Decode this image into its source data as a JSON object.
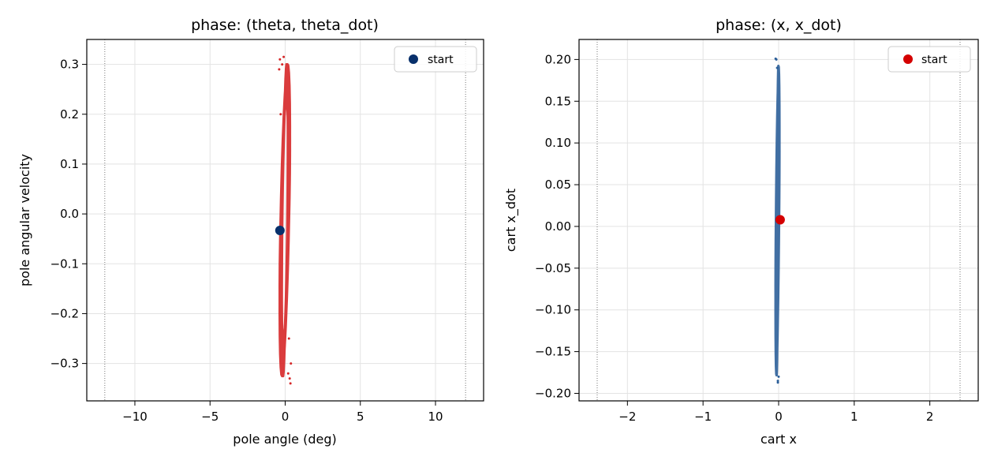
{
  "chart_data": [
    {
      "type": "scatter",
      "title": "phase: (theta, theta_dot)",
      "xlabel": "pole angle (deg)",
      "ylabel": "pole angular velocity",
      "xlim": [
        -13.2,
        13.2
      ],
      "ylim": [
        -0.375,
        0.35
      ],
      "xticks": [
        -10,
        -5,
        0,
        5,
        10
      ],
      "xtick_labels": [
        "−10",
        "−5",
        "0",
        "5",
        "10"
      ],
      "yticks": [
        -0.3,
        -0.2,
        -0.1,
        0.0,
        0.1,
        0.2,
        0.3
      ],
      "ytick_labels": [
        "−0.3",
        "−0.2",
        "−0.1",
        "0.0",
        "0.1",
        "0.2",
        "0.3"
      ],
      "vlines": [
        -12,
        12
      ],
      "grid": true,
      "legend": {
        "position": "top-right",
        "entries": [
          "start"
        ]
      },
      "series": [
        {
          "kind": "trajectory",
          "color": "#d62728",
          "x_range": [
            -0.45,
            0.4
          ],
          "y_range": [
            -0.34,
            0.315
          ],
          "points": [
            {
              "x": -0.35,
              "y": 0.31
            },
            {
              "x": 0.3,
              "y": -0.33
            },
            {
              "x": -0.2,
              "y": 0.3
            },
            {
              "x": 0.35,
              "y": -0.34
            },
            {
              "x": -0.4,
              "y": 0.29
            },
            {
              "x": 0.2,
              "y": -0.32
            },
            {
              "x": -0.1,
              "y": 0.315
            },
            {
              "x": 0.38,
              "y": -0.3
            },
            {
              "x": -0.3,
              "y": 0.2
            },
            {
              "x": 0.25,
              "y": -0.25
            }
          ]
        },
        {
          "name": "start",
          "kind": "marker",
          "color": "#08306b",
          "points": [
            {
              "x": -0.35,
              "y": -0.033
            }
          ]
        }
      ]
    },
    {
      "type": "scatter",
      "title": "phase: (x, x_dot)",
      "xlabel": "cart x",
      "ylabel": "cart x_dot",
      "xlim": [
        -2.64,
        2.64
      ],
      "ylim": [
        -0.209,
        0.224
      ],
      "xticks": [
        -2,
        -1,
        0,
        1,
        2
      ],
      "xtick_labels": [
        "−2",
        "−1",
        "0",
        "1",
        "2"
      ],
      "yticks": [
        -0.2,
        -0.15,
        -0.1,
        -0.05,
        0.0,
        0.05,
        0.1,
        0.15,
        0.2
      ],
      "ytick_labels": [
        "−0.20",
        "−0.15",
        "−0.10",
        "−0.05",
        "0.00",
        "0.05",
        "0.10",
        "0.15",
        "0.20"
      ],
      "vlines": [
        -2.4,
        2.4
      ],
      "grid": true,
      "legend": {
        "position": "top-right",
        "entries": [
          "start"
        ]
      },
      "series": [
        {
          "kind": "trajectory",
          "color": "#2c5f99",
          "x_range": [
            -0.05,
            0.02
          ],
          "y_range": [
            -0.187,
            0.201
          ],
          "points": [
            {
              "x": -0.03,
              "y": 0.2
            },
            {
              "x": -0.01,
              "y": -0.187
            },
            {
              "x": -0.02,
              "y": 0.19
            },
            {
              "x": 0.0,
              "y": -0.18
            },
            {
              "x": -0.04,
              "y": 0.201
            },
            {
              "x": -0.01,
              "y": -0.185
            }
          ]
        },
        {
          "name": "start",
          "kind": "marker",
          "color": "#d40000",
          "points": [
            {
              "x": 0.02,
              "y": 0.008
            }
          ]
        }
      ]
    }
  ]
}
